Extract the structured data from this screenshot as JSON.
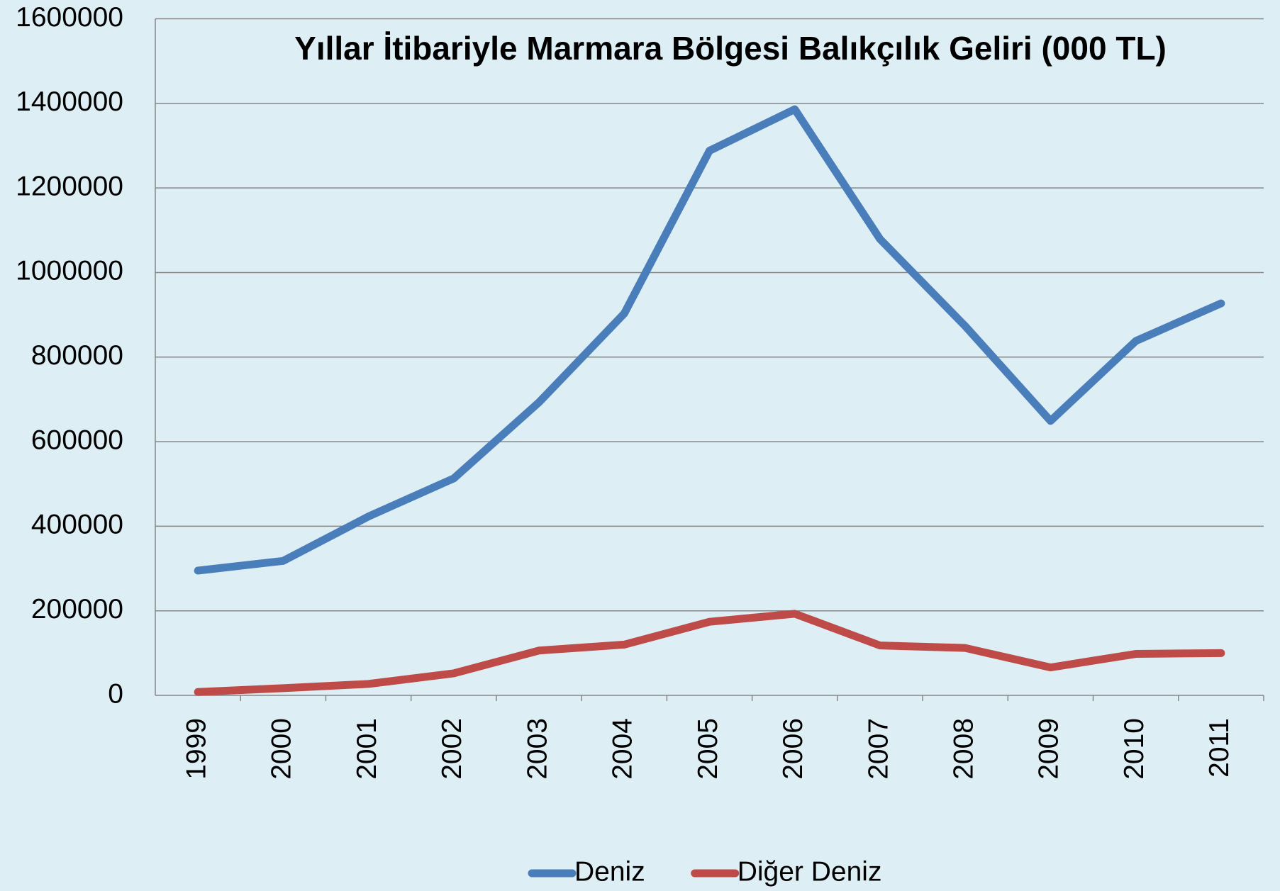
{
  "chart_data": {
    "type": "line",
    "title": "Yıllar İtibariyle Marmara Bölgesi Balıkçılık Geliri  (000 TL)",
    "categories": [
      "1999",
      "2000",
      "2001",
      "2002",
      "2003",
      "2004",
      "2005",
      "2006",
      "2007",
      "2008",
      "2009",
      "2010",
      "2011"
    ],
    "series": [
      {
        "name": "Deniz",
        "color": "#4a7ebb",
        "values": [
          295000,
          318000,
          423000,
          513000,
          693000,
          903000,
          1288000,
          1386000,
          1079000,
          873000,
          649000,
          838000,
          927000
        ]
      },
      {
        "name": "Diğer Deniz",
        "color": "#be4b48",
        "values": [
          8000,
          17000,
          27000,
          52000,
          106000,
          120000,
          174000,
          193000,
          118000,
          112000,
          66000,
          98000,
          100000
        ]
      }
    ],
    "ylim": [
      0,
      1600000
    ],
    "yticks": [
      0,
      200000,
      400000,
      600000,
      800000,
      1000000,
      1200000,
      1400000,
      1600000
    ],
    "grid": true,
    "legend": "bottom"
  }
}
